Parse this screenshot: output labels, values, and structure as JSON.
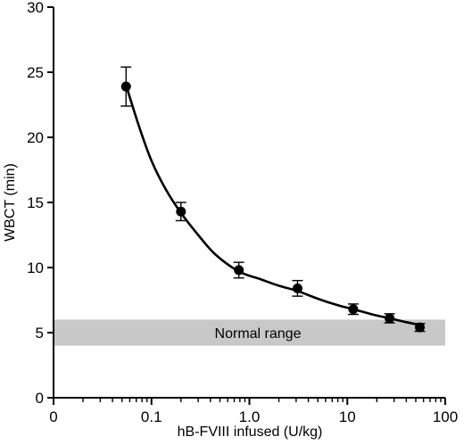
{
  "chart_data": {
    "type": "scatter",
    "title": "",
    "xlabel": "hB-FVIII infused (U/kg)",
    "ylabel": "WBCT (min)",
    "x_scale": "log",
    "x_tick_labels": [
      "0",
      "0.1",
      "1.0",
      "10",
      "100"
    ],
    "y_tick_labels": [
      "0",
      "5",
      "10",
      "15",
      "20",
      "25",
      "30"
    ],
    "ylim": [
      0,
      30
    ],
    "grid": false,
    "series": [
      {
        "points": [
          {
            "x": 0.055,
            "y": 23.9,
            "err": 1.5
          },
          {
            "x": 0.2,
            "y": 14.3,
            "err": 0.7
          },
          {
            "x": 0.78,
            "y": 9.8,
            "err": 0.6
          },
          {
            "x": 3.1,
            "y": 8.4,
            "err": 0.6
          },
          {
            "x": 11.5,
            "y": 6.8,
            "err": 0.4
          },
          {
            "x": 27,
            "y": 6.1,
            "err": 0.35
          },
          {
            "x": 55,
            "y": 5.4,
            "err": 0.3
          }
        ],
        "fit_curve": [
          {
            "x": 0.055,
            "y": 24.0
          },
          {
            "x": 0.075,
            "y": 20.8
          },
          {
            "x": 0.1,
            "y": 18.2
          },
          {
            "x": 0.14,
            "y": 16.0
          },
          {
            "x": 0.2,
            "y": 14.2
          },
          {
            "x": 0.3,
            "y": 12.5
          },
          {
            "x": 0.45,
            "y": 11.0
          },
          {
            "x": 0.78,
            "y": 9.7
          },
          {
            "x": 1.3,
            "y": 9.1
          },
          {
            "x": 2.0,
            "y": 8.6
          },
          {
            "x": 3.1,
            "y": 8.2
          },
          {
            "x": 5.0,
            "y": 7.6
          },
          {
            "x": 8.0,
            "y": 7.1
          },
          {
            "x": 11.5,
            "y": 6.8
          },
          {
            "x": 18,
            "y": 6.4
          },
          {
            "x": 27,
            "y": 6.1
          },
          {
            "x": 40,
            "y": 5.8
          },
          {
            "x": 55,
            "y": 5.6
          }
        ]
      }
    ],
    "normal_range": {
      "y_low": 4.0,
      "y_high": 6.0,
      "label": "Normal range"
    },
    "colors": {
      "band": "#c8c8c8",
      "marks": "#000000"
    }
  }
}
